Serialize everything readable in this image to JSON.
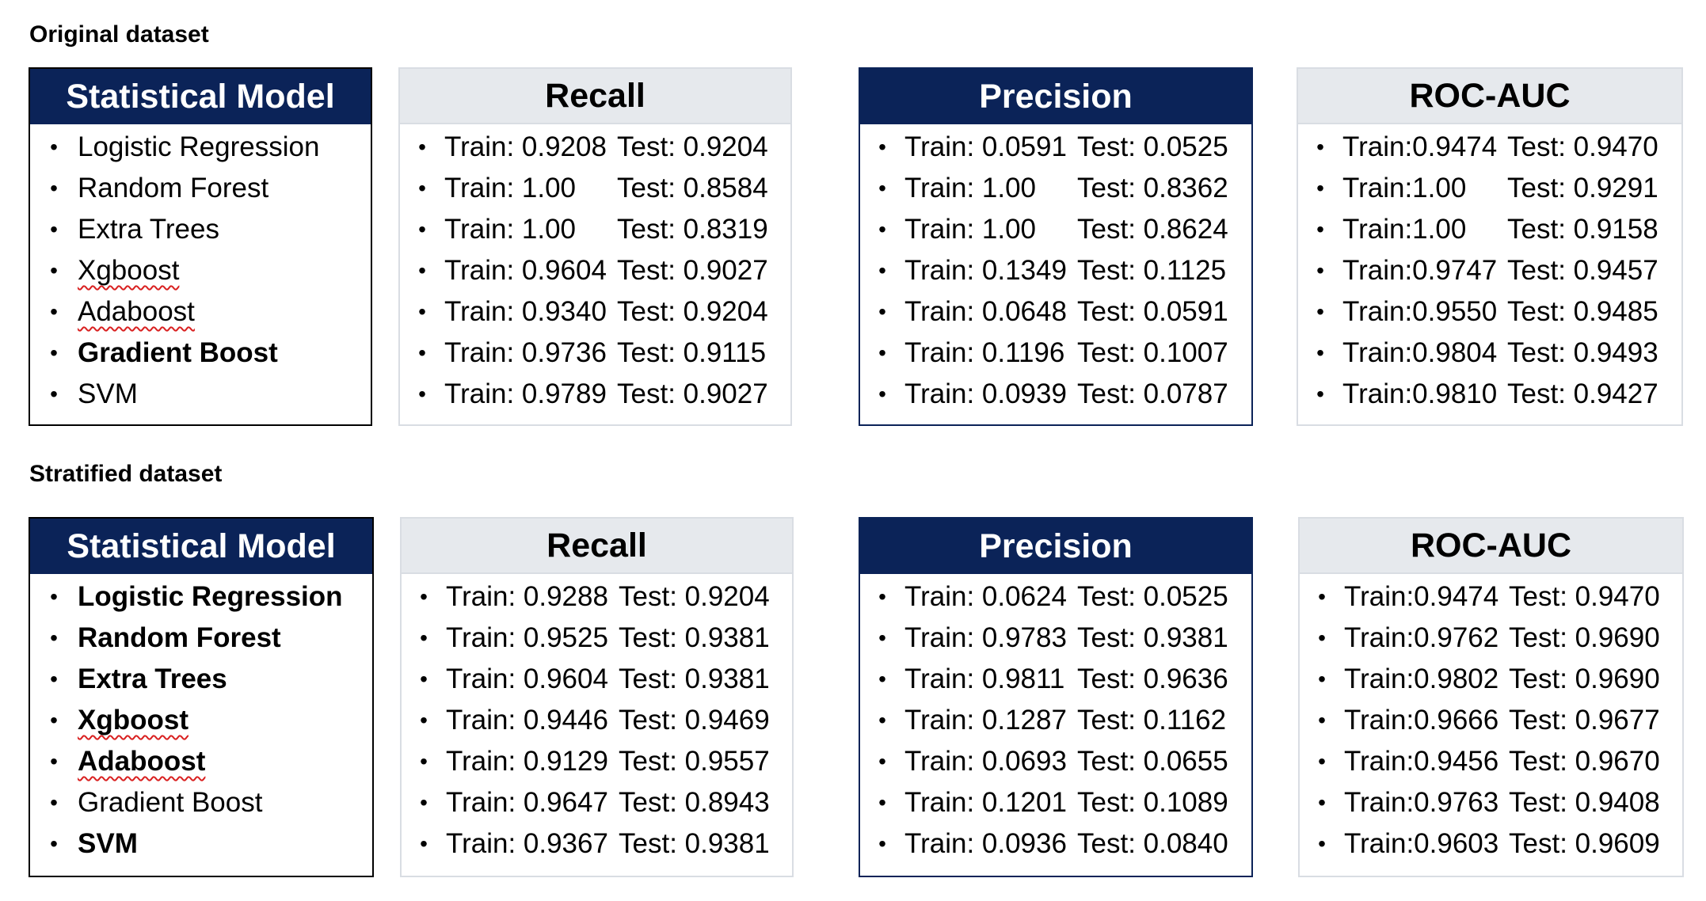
{
  "sections": [
    {
      "title": "Original dataset",
      "models_header": "Statistical Model",
      "models": [
        {
          "name": "Logistic Regression",
          "bold": false,
          "squiggle": false
        },
        {
          "name": "Random Forest",
          "bold": false,
          "squiggle": false
        },
        {
          "name": "Extra Trees",
          "bold": false,
          "squiggle": false
        },
        {
          "name": "Xgboost",
          "bold": false,
          "squiggle": true
        },
        {
          "name": "Adaboost",
          "bold": false,
          "squiggle": true
        },
        {
          "name": "Gradient Boost",
          "bold": true,
          "squiggle": false
        },
        {
          "name": "SVM",
          "bold": false,
          "squiggle": false
        }
      ],
      "metrics": [
        {
          "header": "Recall",
          "style": "light",
          "rows": [
            {
              "train": "Train: 0.9208",
              "test": "Test: 0.9204"
            },
            {
              "train": "Train: 1.00",
              "test": "Test: 0.8584"
            },
            {
              "train": "Train: 1.00",
              "test": "Test: 0.8319"
            },
            {
              "train": "Train: 0.9604",
              "test": "Test: 0.9027"
            },
            {
              "train": "Train: 0.9340",
              "test": "Test: 0.9204"
            },
            {
              "train": "Train: 0.9736",
              "test": "Test: 0.9115"
            },
            {
              "train": "Train: 0.9789",
              "test": "Test: 0.9027"
            }
          ]
        },
        {
          "header": "Precision",
          "style": "dark",
          "rows": [
            {
              "train": "Train: 0.0591",
              "test": "Test: 0.0525"
            },
            {
              "train": "Train: 1.00",
              "test": "Test: 0.8362"
            },
            {
              "train": "Train: 1.00",
              "test": "Test: 0.8624"
            },
            {
              "train": "Train: 0.1349",
              "test": "Test: 0.1125"
            },
            {
              "train": "Train: 0.0648",
              "test": "Test: 0.0591"
            },
            {
              "train": "Train: 0.1196",
              "test": "Test: 0.1007"
            },
            {
              "train": "Train: 0.0939",
              "test": "Test: 0.0787"
            }
          ]
        },
        {
          "header": "ROC-AUC",
          "style": "light",
          "rows": [
            {
              "train": "Train:0.9474",
              "test": "Test: 0.9470"
            },
            {
              "train": "Train:1.00",
              "test": "Test: 0.9291"
            },
            {
              "train": "Train:1.00",
              "test": "Test: 0.9158"
            },
            {
              "train": "Train:0.9747",
              "test": "Test: 0.9457"
            },
            {
              "train": "Train:0.9550",
              "test": "Test: 0.9485"
            },
            {
              "train": "Train:0.9804",
              "test": "Test: 0.9493"
            },
            {
              "train": "Train:0.9810",
              "test": "Test: 0.9427"
            }
          ]
        }
      ]
    },
    {
      "title": "Stratified dataset",
      "models_header": "Statistical Model",
      "models": [
        {
          "name": "Logistic Regression",
          "bold": true,
          "squiggle": false
        },
        {
          "name": "Random Forest",
          "bold": true,
          "squiggle": false
        },
        {
          "name": "Extra Trees",
          "bold": true,
          "squiggle": false
        },
        {
          "name": "Xgboost",
          "bold": true,
          "squiggle": true
        },
        {
          "name": "Adaboost",
          "bold": true,
          "squiggle": true
        },
        {
          "name": "Gradient Boost",
          "bold": false,
          "squiggle": false
        },
        {
          "name": "SVM",
          "bold": true,
          "squiggle": false
        }
      ],
      "metrics": [
        {
          "header": "Recall",
          "style": "light",
          "rows": [
            {
              "train": "Train: 0.9288",
              "test": "Test: 0.9204"
            },
            {
              "train": "Train: 0.9525",
              "test": "Test: 0.9381"
            },
            {
              "train": "Train: 0.9604",
              "test": "Test: 0.9381"
            },
            {
              "train": "Train: 0.9446",
              "test": "Test: 0.9469"
            },
            {
              "train": "Train: 0.9129",
              "test": "Test: 0.9557"
            },
            {
              "train": "Train: 0.9647",
              "test": "Test: 0.8943"
            },
            {
              "train": "Train: 0.9367",
              "test": "Test: 0.9381"
            }
          ]
        },
        {
          "header": "Precision",
          "style": "dark",
          "rows": [
            {
              "train": "Train: 0.0624",
              "test": "Test: 0.0525"
            },
            {
              "train": "Train: 0.9783",
              "test": "Test: 0.9381"
            },
            {
              "train": "Train: 0.9811",
              "test": "Test: 0.9636"
            },
            {
              "train": "Train: 0.1287",
              "test": "Test: 0.1162"
            },
            {
              "train": "Train: 0.0693",
              "test": "Test: 0.0655"
            },
            {
              "train": "Train: 0.1201",
              "test": "Test: 0.1089"
            },
            {
              "train": "Train: 0.0936",
              "test": "Test: 0.0840"
            }
          ]
        },
        {
          "header": "ROC-AUC",
          "style": "light",
          "rows": [
            {
              "train": "Train:0.9474",
              "test": "Test: 0.9470"
            },
            {
              "train": "Train:0.9762",
              "test": "Test: 0.9690"
            },
            {
              "train": "Train:0.9802",
              "test": "Test: 0.9690"
            },
            {
              "train": "Train:0.9666",
              "test": "Test: 0.9677"
            },
            {
              "train": "Train:0.9456",
              "test": "Test: 0.9670"
            },
            {
              "train": "Train:0.9763",
              "test": "Test: 0.9408"
            },
            {
              "train": "Train:0.9603",
              "test": "Test: 0.9609"
            }
          ]
        }
      ]
    }
  ],
  "colors": {
    "navy": "#0b2358",
    "light_header": "#e6e9ed",
    "light_border": "#d9dde3"
  },
  "bullet_glyph": "•"
}
